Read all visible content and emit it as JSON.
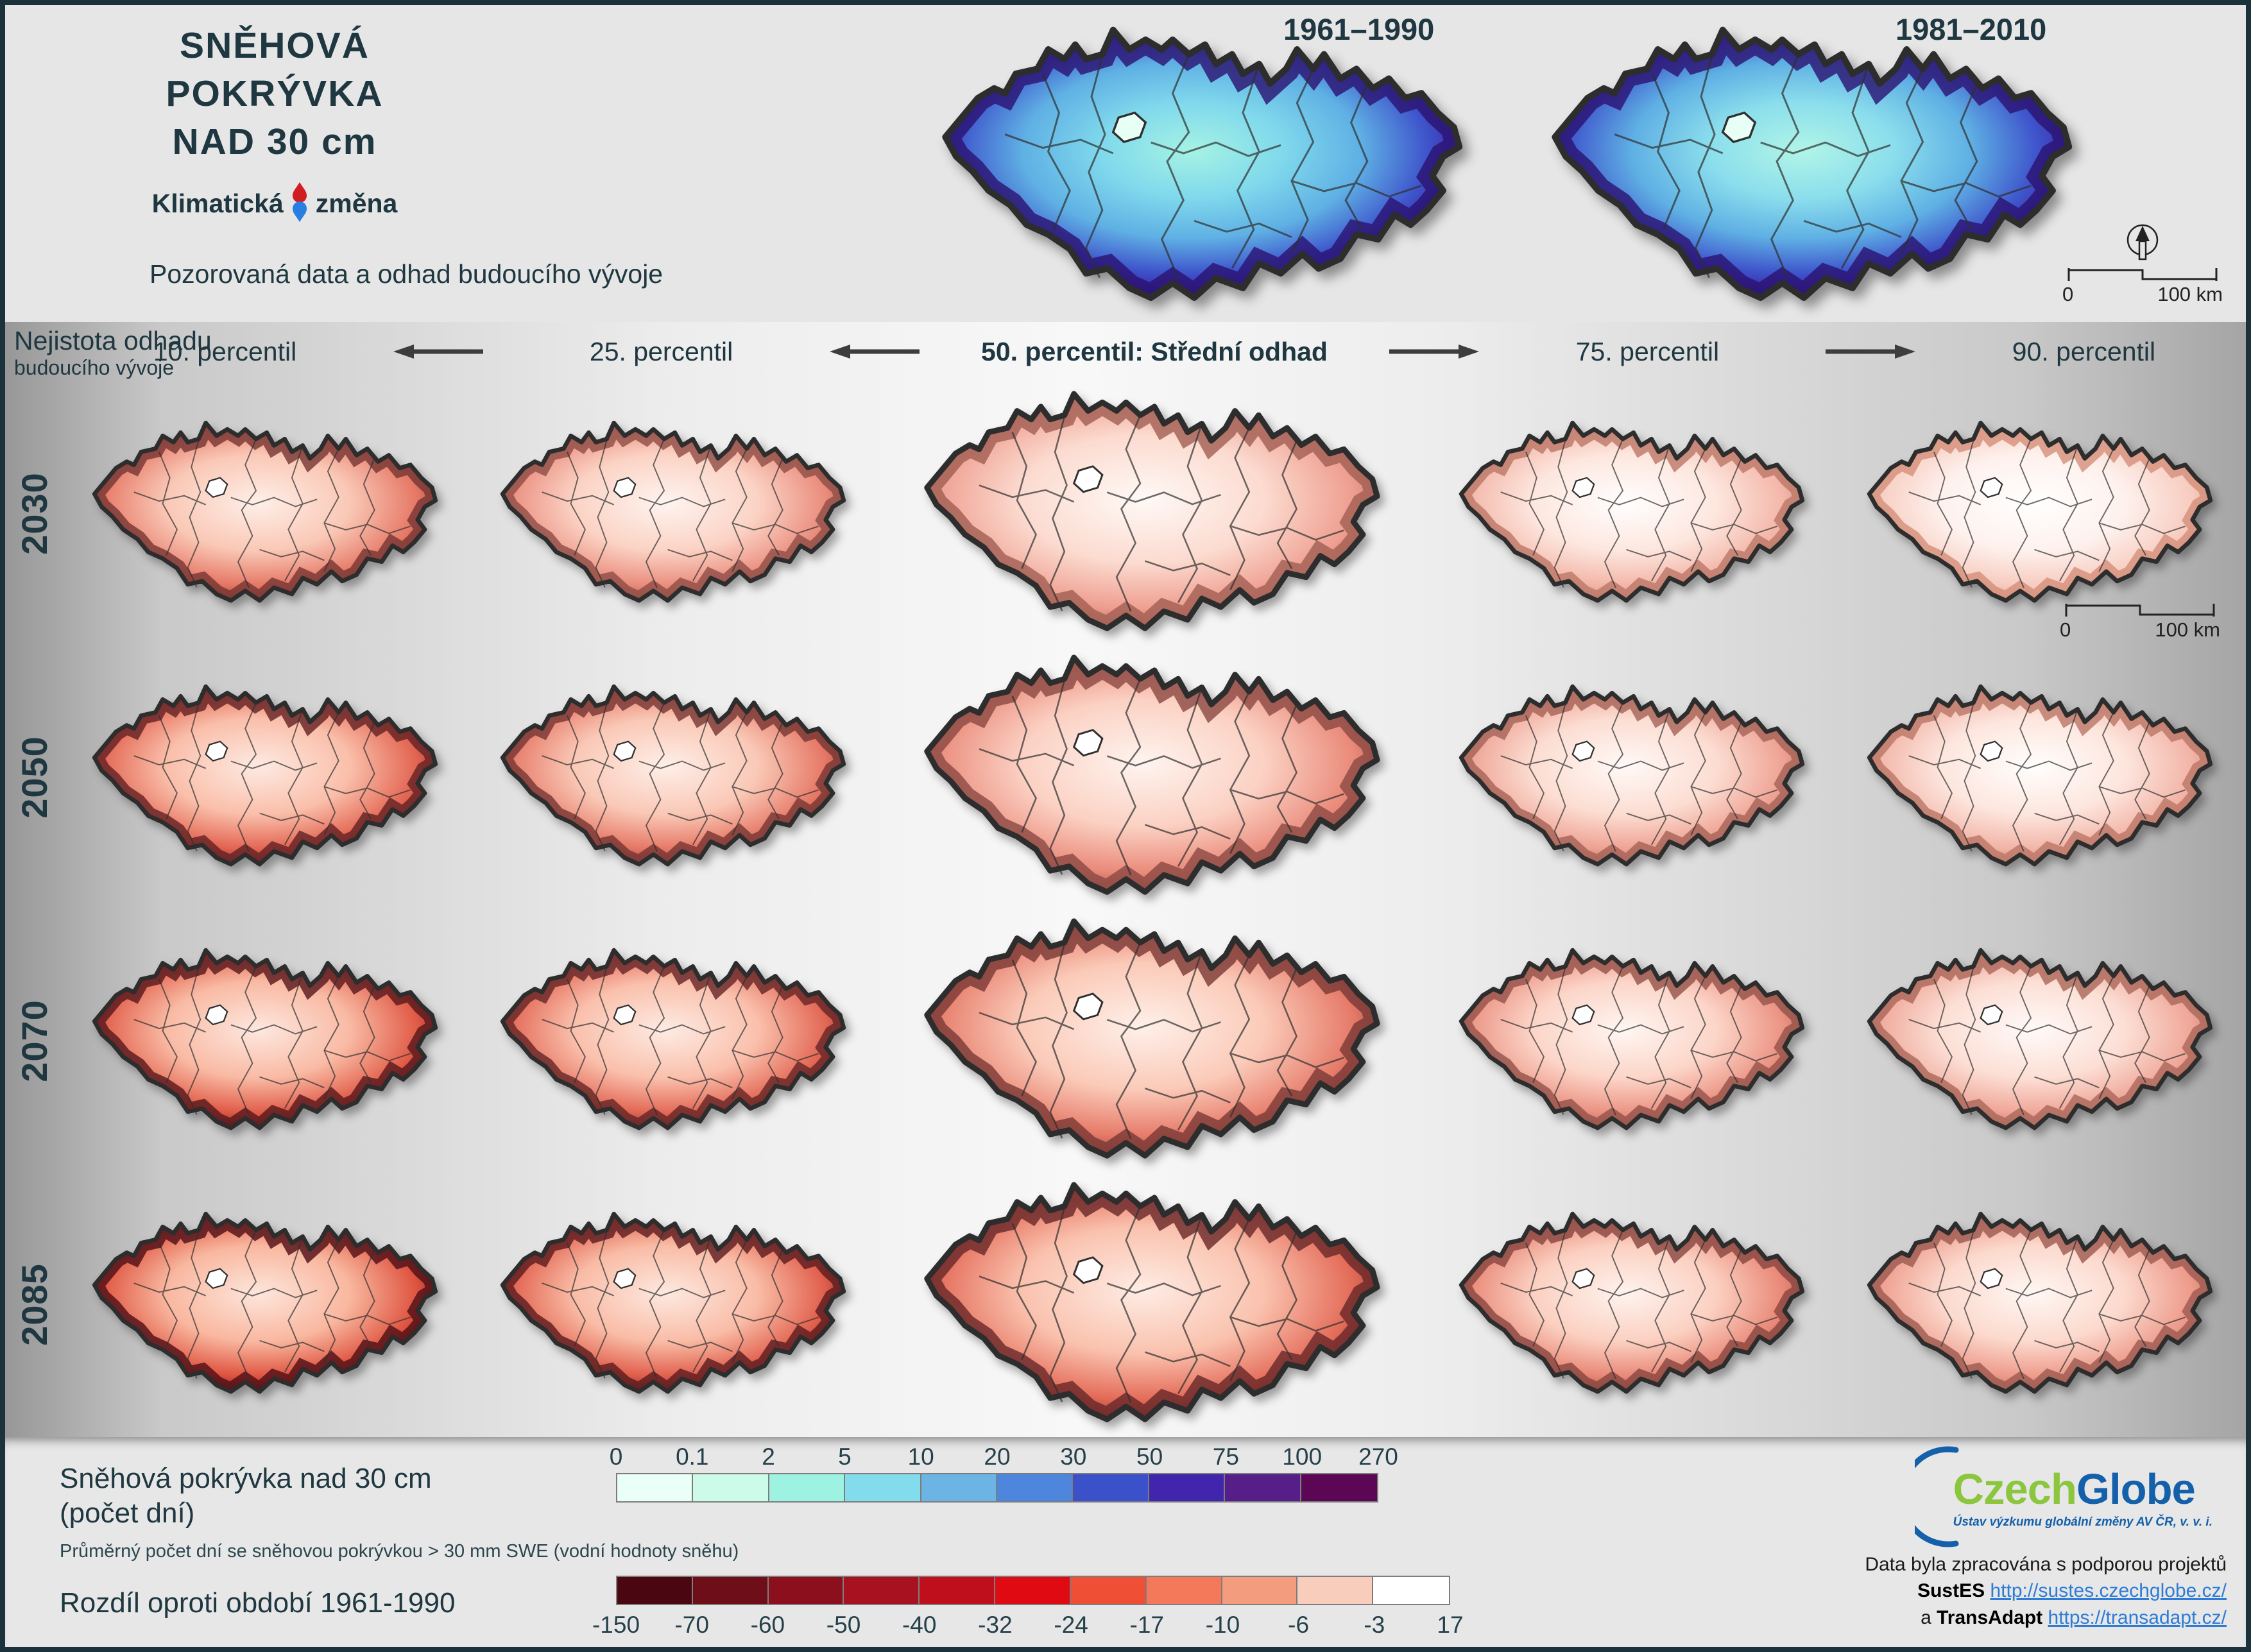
{
  "page": {
    "background": "#e6e6e6",
    "frame_color": "#1b323c",
    "text_color": "#1e3740"
  },
  "header": {
    "title_line1": "SNĚHOVÁ POKRÝVKA",
    "title_line2": "NAD 30 cm",
    "logo": {
      "word1": "Klimatická",
      "word2": "změna",
      "drop_red": "#cf1d21",
      "drop_blue": "#2a7de1"
    },
    "subtitle": "Pozorovaná data a odhad budoucího vývoje",
    "ref_maps": [
      {
        "label": "1961–1990",
        "palette": "blue",
        "intensity": 1.0
      },
      {
        "label": "1981–2010",
        "palette": "blue",
        "intensity": 0.8
      }
    ],
    "compass_scalebar": {
      "zero": "0",
      "hundred": "100 km"
    }
  },
  "matrix": {
    "uncertainty_line1": "Nejistota odhadu",
    "uncertainty_line2": "budoucího vývoje",
    "columns": [
      {
        "label": "10. percentil",
        "bold": false
      },
      {
        "label": "25. percentil",
        "bold": false
      },
      {
        "label": "50. percentil: Střední odhad",
        "bold": true
      },
      {
        "label": "75. percentil",
        "bold": false
      },
      {
        "label": "90. percentil",
        "bold": false
      }
    ],
    "arrows": [
      "left",
      "left",
      "right",
      "right"
    ],
    "rows": [
      "2030",
      "2050",
      "2070",
      "2085"
    ],
    "scalebar": {
      "zero": "0",
      "hundred": "100 km"
    },
    "cells": [
      {
        "year": "2030",
        "percentile": "10. percentil",
        "intensity": 0.72
      },
      {
        "year": "2030",
        "percentile": "25. percentil",
        "intensity": 0.58
      },
      {
        "year": "2030",
        "percentile": "50. percentil",
        "intensity": 0.47
      },
      {
        "year": "2030",
        "percentile": "75. percentil",
        "intensity": 0.32
      },
      {
        "year": "2030",
        "percentile": "90. percentil",
        "intensity": 0.18
      },
      {
        "year": "2050",
        "percentile": "10. percentil",
        "intensity": 0.84
      },
      {
        "year": "2050",
        "percentile": "25. percentil",
        "intensity": 0.72
      },
      {
        "year": "2050",
        "percentile": "50. percentil",
        "intensity": 0.6
      },
      {
        "year": "2050",
        "percentile": "75. percentil",
        "intensity": 0.45
      },
      {
        "year": "2050",
        "percentile": "90. percentil",
        "intensity": 0.33
      },
      {
        "year": "2070",
        "percentile": "10. percentil",
        "intensity": 0.9
      },
      {
        "year": "2070",
        "percentile": "25. percentil",
        "intensity": 0.82
      },
      {
        "year": "2070",
        "percentile": "50. percentil",
        "intensity": 0.7
      },
      {
        "year": "2070",
        "percentile": "75. percentil",
        "intensity": 0.55
      },
      {
        "year": "2070",
        "percentile": "90. percentil",
        "intensity": 0.42
      },
      {
        "year": "2085",
        "percentile": "10. percentil",
        "intensity": 0.95
      },
      {
        "year": "2085",
        "percentile": "25. percentil",
        "intensity": 0.88
      },
      {
        "year": "2085",
        "percentile": "50. percentil",
        "intensity": 0.8
      },
      {
        "year": "2085",
        "percentile": "75. percentil",
        "intensity": 0.62
      },
      {
        "year": "2085",
        "percentile": "90. percentil",
        "intensity": 0.5
      }
    ]
  },
  "legend": {
    "snow": {
      "title_line1": "Sněhová pokrývka nad 30 cm",
      "title_line2": "(počet dní)",
      "note": "Průměrný počet dní se sněhovou pokrývkou > 30 mm SWE (vodní hodnoty sněhu)",
      "ticks": [
        "0",
        "0.1",
        "2",
        "5",
        "10",
        "20",
        "30",
        "50",
        "75",
        "100",
        "270"
      ],
      "colors": [
        "#eafff7",
        "#ccfbea",
        "#9ef2e2",
        "#83dcec",
        "#6cb4e4",
        "#4e86de",
        "#3b51c9",
        "#4125ac",
        "#551e88",
        "#5c0755"
      ]
    },
    "diff": {
      "title": "Rozdíl oproti období 1961-1990",
      "ticks": [
        "-150",
        "-70",
        "-60",
        "-50",
        "-40",
        "-32",
        "-24",
        "-17",
        "-10",
        "-6",
        "-3",
        "17"
      ],
      "colors": [
        "#4a0711",
        "#6e0e18",
        "#8c0f1d",
        "#a81220",
        "#c00f1c",
        "#df0a12",
        "#ef4f34",
        "#f4795b",
        "#f49c7e",
        "#f9cdbc",
        "#ffffff"
      ]
    }
  },
  "credits": {
    "brand_part1": "Czech",
    "brand_part2": "Globe",
    "brand_sub": "Ústav výzkumu globální změny AV ČR, v. v. i.",
    "line1": "Data byla zpracována s podporou projektů",
    "sustes_label": "SustES",
    "sustes_url": "http://sustes.czechglobe.cz/",
    "a_label": "a",
    "transadapt_label": "TransAdapt",
    "transadapt_url": "https://transadapt.cz/"
  }
}
